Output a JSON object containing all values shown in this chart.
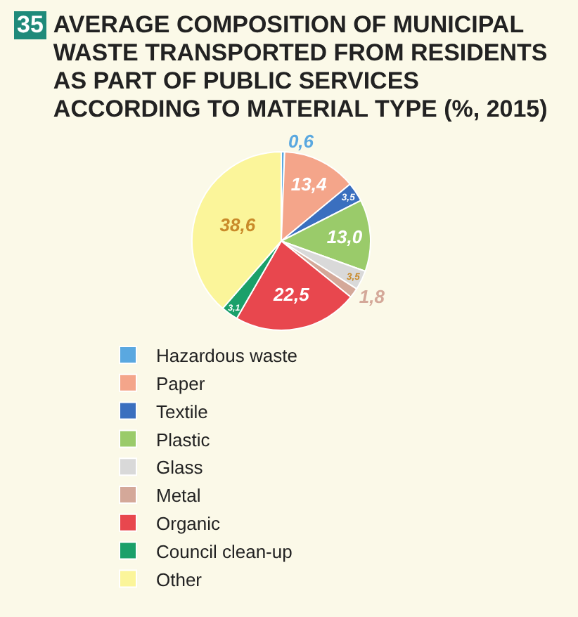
{
  "chart_data": {
    "type": "pie",
    "title": "AVERAGE COMPOSITION OF MUNICIPAL WASTE TRANSPORTED FROM RESIDENTS AS PART OF PUBLIC SERVICES ACCORDING TO MATERIAL TYPE (%, 2015)",
    "annotations": [
      "35"
    ],
    "categories": [
      "Hazardous waste",
      "Paper",
      "Textile",
      "Plastic",
      "Glass",
      "Metal",
      "Organic",
      "Council clean-up",
      "Other"
    ],
    "values": [
      0.6,
      13.4,
      3.5,
      13.0,
      3.5,
      1.8,
      22.5,
      3.1,
      38.6
    ],
    "value_labels": [
      "0,6",
      "13,4",
      "3,5",
      "13,0",
      "3,5",
      "1,8",
      "22,5",
      "3,1",
      "38,6"
    ],
    "colors": [
      "#5aa8e0",
      "#f4a58a",
      "#3a6fbf",
      "#9acb6a",
      "#d9d9d9",
      "#d4a899",
      "#e8474e",
      "#1aa06a",
      "#fbf59a"
    ],
    "legend": "bottom"
  }
}
